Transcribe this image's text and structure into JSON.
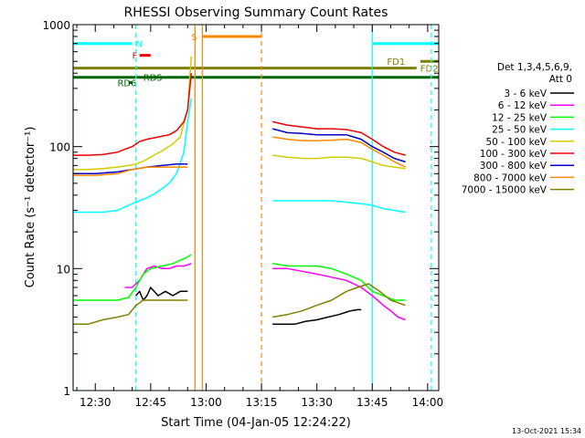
{
  "chart_data": {
    "type": "line",
    "title": "RHESSI Observing Summary Count Rates",
    "xlabel": "Start Time (04-Jan-05 12:24:22)",
    "ylabel": "Count Rate (s⁻¹ detector⁻¹)",
    "yscale": "log",
    "xlim": [
      "12:24",
      "14:03"
    ],
    "ylim": [
      1,
      1000
    ],
    "x_ticks": [
      "12:30",
      "12:45",
      "13:00",
      "13:15",
      "13:30",
      "13:45",
      "14:00"
    ],
    "y_ticks": [
      "1",
      "10",
      "100",
      "1000"
    ],
    "legend_header": [
      "Det 1,3,4,5,6,9,",
      "Att 0"
    ],
    "series": [
      {
        "name": "3 - 6 keV",
        "color": "#000000",
        "segments": [
          [
            [
              "12:41",
              6
            ],
            [
              "12:42",
              6.5
            ],
            [
              "12:43",
              5.5
            ],
            [
              "12:44",
              6
            ],
            [
              "12:45",
              7
            ],
            [
              "12:47",
              6
            ],
            [
              "12:49",
              6.5
            ],
            [
              "12:51",
              6
            ],
            [
              "12:53",
              6.5
            ],
            [
              "12:55",
              6.5
            ]
          ],
          [
            [
              "13:18",
              3.5
            ],
            [
              "13:21",
              3.5
            ],
            [
              "13:24",
              3.5
            ],
            [
              "13:27",
              3.7
            ],
            [
              "13:30",
              3.8
            ],
            [
              "13:33",
              4
            ],
            [
              "13:36",
              4.2
            ],
            [
              "13:39",
              4.5
            ],
            [
              "13:41",
              4.6
            ],
            [
              "13:42",
              4.6
            ]
          ]
        ]
      },
      {
        "name": "6 - 12 keV",
        "color": "#ff00ff",
        "segments": [
          [
            [
              "12:38",
              7
            ],
            [
              "12:40",
              7
            ],
            [
              "12:42",
              8
            ],
            [
              "12:44",
              10
            ],
            [
              "12:46",
              10.5
            ],
            [
              "12:48",
              10
            ],
            [
              "12:50",
              10
            ],
            [
              "12:52",
              10.5
            ],
            [
              "12:54",
              10.5
            ],
            [
              "12:56",
              11
            ]
          ],
          [
            [
              "13:18",
              10
            ],
            [
              "13:22",
              10
            ],
            [
              "13:26",
              9.5
            ],
            [
              "13:30",
              9
            ],
            [
              "13:34",
              8.5
            ],
            [
              "13:38",
              8
            ],
            [
              "13:42",
              7
            ],
            [
              "13:45",
              6
            ],
            [
              "13:48",
              5
            ],
            [
              "13:50",
              4.5
            ],
            [
              "13:52",
              4
            ],
            [
              "13:54",
              3.8
            ]
          ]
        ]
      },
      {
        "name": "12 - 25 keV",
        "color": "#00ff00",
        "segments": [
          [
            [
              "12:24",
              5.5
            ],
            [
              "12:28",
              5.5
            ],
            [
              "12:32",
              5.5
            ],
            [
              "12:36",
              5.5
            ],
            [
              "12:39",
              5.8
            ],
            [
              "12:41",
              7
            ],
            [
              "12:43",
              9
            ],
            [
              "12:45",
              10
            ],
            [
              "12:48",
              10.5
            ],
            [
              "12:51",
              11
            ],
            [
              "12:54",
              12
            ],
            [
              "12:56",
              13
            ]
          ],
          [
            [
              "13:18",
              11
            ],
            [
              "13:22",
              10.5
            ],
            [
              "13:26",
              10.5
            ],
            [
              "13:30",
              10.5
            ],
            [
              "13:34",
              10
            ],
            [
              "13:38",
              9
            ],
            [
              "13:42",
              8
            ],
            [
              "13:45",
              6.5
            ],
            [
              "13:48",
              6
            ],
            [
              "13:51",
              5.5
            ],
            [
              "13:54",
              5.5
            ]
          ]
        ]
      },
      {
        "name": "25 - 50 keV",
        "color": "#00ffff",
        "segments": [
          [
            [
              "12:24",
              29
            ],
            [
              "12:28",
              29
            ],
            [
              "12:32",
              29
            ],
            [
              "12:36",
              30
            ],
            [
              "12:38",
              32
            ],
            [
              "12:40",
              34
            ],
            [
              "12:42",
              36
            ],
            [
              "12:44",
              38
            ],
            [
              "12:46",
              41
            ],
            [
              "12:48",
              45
            ],
            [
              "12:50",
              50
            ],
            [
              "12:52",
              60
            ],
            [
              "12:54",
              90
            ],
            [
              "12:55",
              160
            ],
            [
              "12:56",
              250
            ]
          ],
          [
            [
              "13:18",
              36
            ],
            [
              "13:22",
              36
            ],
            [
              "13:26",
              36
            ],
            [
              "13:30",
              36
            ],
            [
              "13:34",
              36
            ],
            [
              "13:38",
              35
            ],
            [
              "13:42",
              34
            ],
            [
              "13:45",
              33
            ],
            [
              "13:48",
              31
            ],
            [
              "13:51",
              30
            ],
            [
              "13:54",
              29
            ]
          ]
        ]
      },
      {
        "name": "50 - 100 keV",
        "color": "#d4cc00",
        "segments": [
          [
            [
              "12:24",
              65
            ],
            [
              "12:28",
              65
            ],
            [
              "12:32",
              66
            ],
            [
              "12:36",
              68
            ],
            [
              "12:39",
              70
            ],
            [
              "12:41",
              72
            ],
            [
              "12:43",
              76
            ],
            [
              "12:45",
              82
            ],
            [
              "12:48",
              92
            ],
            [
              "12:51",
              105
            ],
            [
              "12:53",
              120
            ],
            [
              "12:55",
              200
            ],
            [
              "12:56",
              550
            ]
          ],
          [
            [
              "13:18",
              85
            ],
            [
              "13:22",
              82
            ],
            [
              "13:26",
              80
            ],
            [
              "13:30",
              80
            ],
            [
              "13:34",
              82
            ],
            [
              "13:38",
              82
            ],
            [
              "13:42",
              80
            ],
            [
              "13:45",
              75
            ],
            [
              "13:48",
              70
            ],
            [
              "13:51",
              68
            ],
            [
              "13:54",
              66
            ]
          ]
        ]
      },
      {
        "name": "100 - 300 keV",
        "color": "#ee0000",
        "segments": [
          [
            [
              "12:24",
              85
            ],
            [
              "12:28",
              85
            ],
            [
              "12:32",
              86
            ],
            [
              "12:36",
              90
            ],
            [
              "12:38",
              95
            ],
            [
              "12:40",
              100
            ],
            [
              "12:42",
              110
            ],
            [
              "12:44",
              115
            ],
            [
              "12:47",
              120
            ],
            [
              "12:50",
              125
            ],
            [
              "12:52",
              135
            ],
            [
              "12:54",
              160
            ],
            [
              "12:55",
              200
            ],
            [
              "12:56",
              400
            ]
          ],
          [
            [
              "13:18",
              160
            ],
            [
              "13:22",
              150
            ],
            [
              "13:26",
              145
            ],
            [
              "13:30",
              140
            ],
            [
              "13:34",
              140
            ],
            [
              "13:38",
              138
            ],
            [
              "13:42",
              130
            ],
            [
              "13:45",
              115
            ],
            [
              "13:48",
              100
            ],
            [
              "13:51",
              90
            ],
            [
              "13:54",
              85
            ]
          ]
        ]
      },
      {
        "name": "300 - 800 keV",
        "color": "#0000cc",
        "segments": [
          [
            [
              "12:24",
              60
            ],
            [
              "12:30",
              60
            ],
            [
              "12:36",
              62
            ],
            [
              "12:40",
              65
            ],
            [
              "12:44",
              68
            ],
            [
              "12:48",
              70
            ],
            [
              "12:52",
              72
            ],
            [
              "12:55",
              72
            ]
          ],
          [
            [
              "13:18",
              140
            ],
            [
              "13:22",
              130
            ],
            [
              "13:26",
              128
            ],
            [
              "13:30",
              125
            ],
            [
              "13:34",
              125
            ],
            [
              "13:38",
              125
            ],
            [
              "13:42",
              115
            ],
            [
              "13:45",
              100
            ],
            [
              "13:48",
              90
            ],
            [
              "13:51",
              80
            ],
            [
              "13:54",
              75
            ]
          ]
        ]
      },
      {
        "name": "800 - 7000 keV",
        "color": "#ff8800",
        "segments": [
          [
            [
              "12:24",
              58
            ],
            [
              "12:30",
              58
            ],
            [
              "12:36",
              60
            ],
            [
              "12:40",
              65
            ],
            [
              "12:44",
              68
            ],
            [
              "12:48",
              68
            ],
            [
              "12:52",
              68
            ],
            [
              "12:55",
              68
            ]
          ],
          [
            [
              "13:18",
              120
            ],
            [
              "13:22",
              115
            ],
            [
              "13:26",
              112
            ],
            [
              "13:30",
              112
            ],
            [
              "13:34",
              113
            ],
            [
              "13:38",
              115
            ],
            [
              "13:42",
              108
            ],
            [
              "13:45",
              95
            ],
            [
              "13:48",
              85
            ],
            [
              "13:51",
              75
            ],
            [
              "13:54",
              68
            ]
          ]
        ]
      },
      {
        "name": "7000 - 15000 keV",
        "color": "#808000",
        "segments": [
          [
            [
              "12:24",
              3.5
            ],
            [
              "12:28",
              3.5
            ],
            [
              "12:32",
              3.8
            ],
            [
              "12:36",
              4
            ],
            [
              "12:39",
              4.2
            ],
            [
              "12:41",
              5
            ],
            [
              "12:43",
              5.5
            ],
            [
              "12:46",
              5.5
            ],
            [
              "12:50",
              5.5
            ],
            [
              "12:53",
              5.5
            ],
            [
              "12:55",
              5.5
            ]
          ],
          [
            [
              "13:18",
              4
            ],
            [
              "13:22",
              4.2
            ],
            [
              "13:26",
              4.5
            ],
            [
              "13:30",
              5
            ],
            [
              "13:34",
              5.5
            ],
            [
              "13:38",
              6.5
            ],
            [
              "13:41",
              7
            ],
            [
              "13:44",
              7.5
            ],
            [
              "13:47",
              6.5
            ],
            [
              "13:50",
              5.5
            ],
            [
              "13:54",
              5
            ]
          ]
        ]
      }
    ],
    "flags": [
      {
        "label": "N",
        "color": "#00ffff",
        "segments": [
          [
            "12:24",
            "12:40"
          ],
          [
            "13:45",
            "14:03"
          ]
        ],
        "y": 700,
        "label_at": "12:41"
      },
      {
        "label": "F",
        "color": "#ee0000",
        "segments": [
          [
            "12:42",
            "12:45"
          ]
        ],
        "y": 560,
        "label_at": "12:40"
      },
      {
        "label": "S",
        "color": "#ff8800",
        "segments": [
          [
            "12:59",
            "13:15"
          ]
        ],
        "y": 800,
        "label_at": "12:56"
      },
      {
        "label": "FD1",
        "color": "#808000",
        "segments": [
          [
            "13:58",
            "14:03"
          ]
        ],
        "y": 500,
        "label_at": "13:49"
      },
      {
        "label": "FD2",
        "color": "#808000",
        "segments": [
          [
            "12:24",
            "13:57"
          ]
        ],
        "y": 440,
        "label_at": "13:58"
      },
      {
        "label": "RD5",
        "color": "#006400",
        "segments": [
          [
            "12:24",
            "14:03"
          ]
        ],
        "y": 370,
        "label_at": "12:43"
      },
      {
        "label": "RD6",
        "color": "#006400",
        "segments": [
          [
            "12:39",
            "12:40"
          ]
        ],
        "y": 335,
        "label_at": "12:36"
      }
    ],
    "vlines": [
      {
        "x": "12:24",
        "color": "#00ffff",
        "dashed": false
      },
      {
        "x": "12:41",
        "color": "#00ffff",
        "dashed": true
      },
      {
        "x": "12:57",
        "color": "#00ffff",
        "dashed": false
      },
      {
        "x": "12:57",
        "color": "#ff8800",
        "dashed": false
      },
      {
        "x": "12:59",
        "color": "#ff8800",
        "dashed": false
      },
      {
        "x": "13:15",
        "color": "#ff8800",
        "dashed": true
      },
      {
        "x": "13:45",
        "color": "#00ffff",
        "dashed": false
      },
      {
        "x": "14:01",
        "color": "#00ffff",
        "dashed": true
      }
    ],
    "footer": "13-Oct-2021 15:34"
  }
}
